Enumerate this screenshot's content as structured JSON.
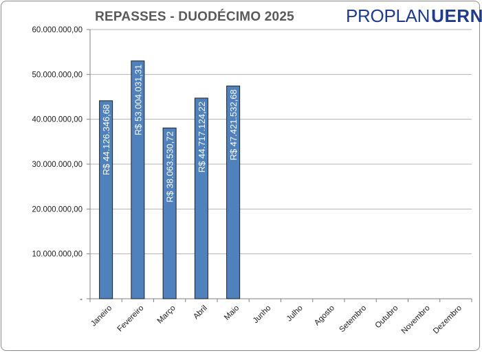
{
  "header": {
    "title": "REPASSES - DUODÉCIMO 2025",
    "logo_left": "PROPLAN",
    "logo_right": "UERN"
  },
  "colors": {
    "bar_fill": "#4f81bd",
    "bar_stroke": "#1f1f1f",
    "grid": "#b3b3b3",
    "axis": "#7f7f7f",
    "text": "#1a1a1a",
    "title": "#595959",
    "logo": "#1f3b8c"
  },
  "chart_data": {
    "type": "bar",
    "title": "REPASSES - DUODÉCIMO 2025",
    "xlabel": "",
    "ylabel": "",
    "ylim": [
      0,
      60000000
    ],
    "yticks": [
      0,
      10000000,
      20000000,
      30000000,
      40000000,
      50000000,
      60000000
    ],
    "ytick_labels": [
      "-",
      "10.000.000,00",
      "20.000.000,00",
      "30.000.000,00",
      "40.000.000,00",
      "50.000.000,00",
      "60.000.000,00"
    ],
    "grid": true,
    "legend": "none",
    "categories": [
      "Janeiro",
      "Fevereiro",
      "Março",
      "Abril",
      "Maio",
      "Junho",
      "Julho",
      "Agosto",
      "Setembro",
      "Outubro",
      "Novembro",
      "Dezembro"
    ],
    "values": [
      44126346.68,
      53004031.31,
      38063530.72,
      44717124.22,
      47421532.68,
      null,
      null,
      null,
      null,
      null,
      null,
      null
    ],
    "data_labels": [
      "R$ 44.126.346,68",
      "R$ 53.004.031,31",
      "R$ 38.063.530,72",
      "R$ 44.717.124,22",
      "R$ 47.421.532,68",
      "",
      "",
      "",
      "",
      "",
      "",
      ""
    ]
  }
}
